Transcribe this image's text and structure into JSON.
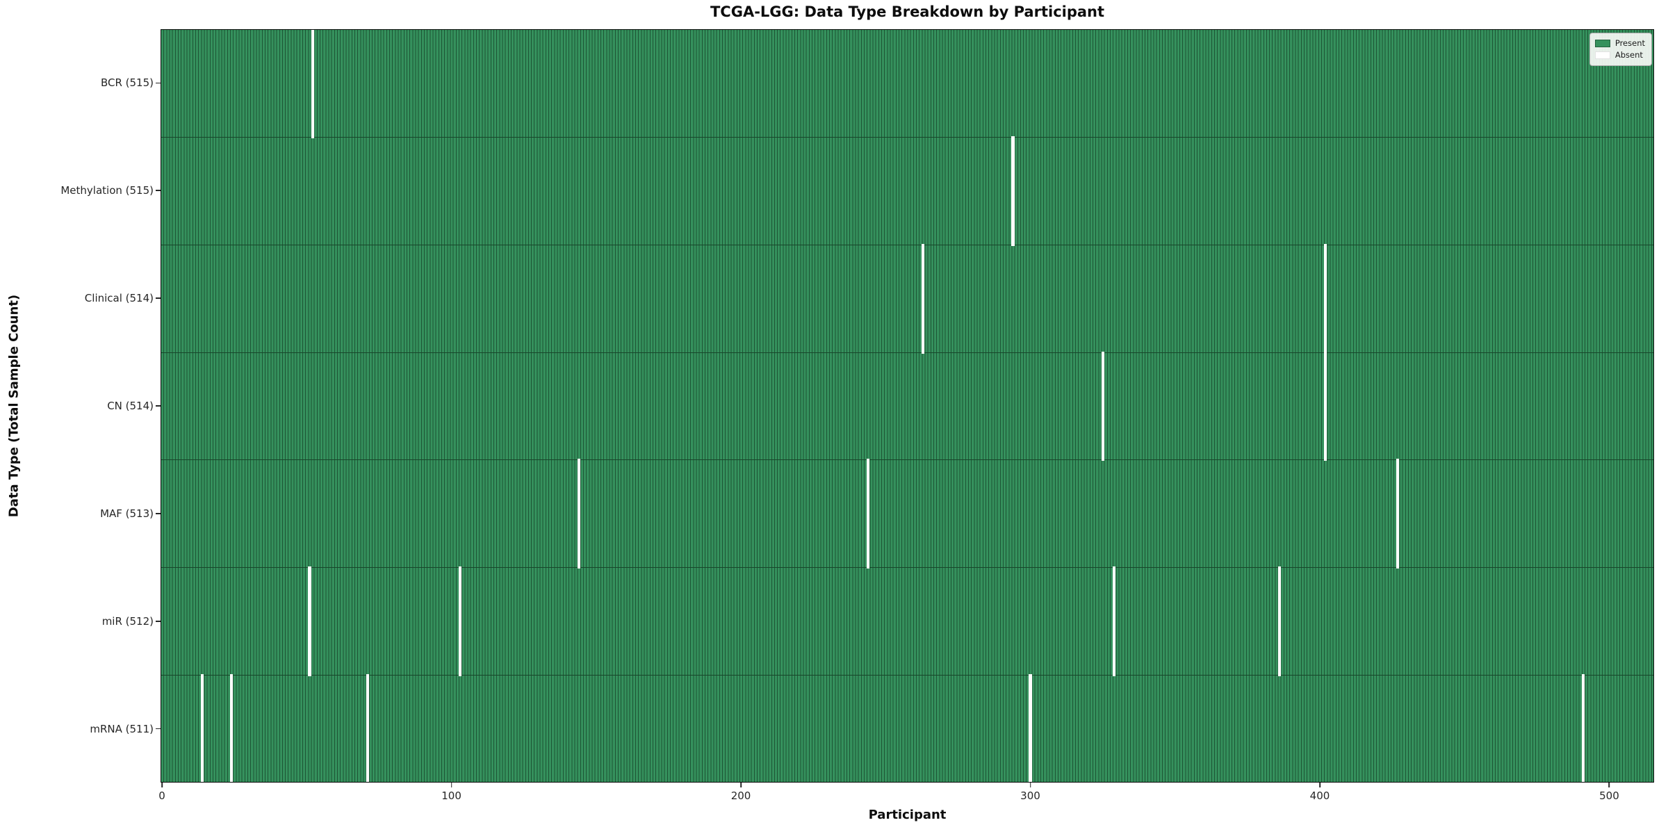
{
  "figure": {
    "title": "TCGA-LGG: Data Type Breakdown by Participant",
    "xlabel": "Participant",
    "ylabel": "Data Type (Total Sample Count)"
  },
  "legend": {
    "position": "upper-right",
    "items": [
      {
        "label": "Present",
        "color": "#35915d"
      },
      {
        "label": "Absent",
        "color": "#ffffff"
      }
    ]
  },
  "colors": {
    "present_fill": "#35915d",
    "bar_edge": "#1d5434",
    "absent_fill": "#ffffff",
    "axis_text": "#262626",
    "frame": "#0a0a0a"
  },
  "chart_data": {
    "type": "heatmap",
    "title": "TCGA-LGG: Data Type Breakdown by Participant",
    "xlabel": "Participant",
    "ylabel": "Data Type (Total Sample Count)",
    "grid": false,
    "legend_position": "upper right",
    "n_participants": 516,
    "xlim": [
      -0.5,
      515.5
    ],
    "x_ticks": [
      0,
      100,
      200,
      300,
      400,
      500
    ],
    "value_encoding": {
      "present": "green cell",
      "absent": "white cell"
    },
    "rows": [
      {
        "label": "BCR (515)",
        "data_type": "BCR",
        "total_samples": 515,
        "absent_participants": [
          52
        ]
      },
      {
        "label": "Methylation (515)",
        "data_type": "Methylation",
        "total_samples": 515,
        "absent_participants": [
          294
        ]
      },
      {
        "label": "Clinical (514)",
        "data_type": "Clinical",
        "total_samples": 514,
        "absent_participants": [
          263,
          402
        ]
      },
      {
        "label": "CN (514)",
        "data_type": "CN",
        "total_samples": 514,
        "absent_participants": [
          325,
          402
        ]
      },
      {
        "label": "MAF (513)",
        "data_type": "MAF",
        "total_samples": 513,
        "absent_participants": [
          144,
          244,
          427
        ]
      },
      {
        "label": "miR (512)",
        "data_type": "miR",
        "total_samples": 512,
        "absent_participants": [
          51,
          103,
          329,
          386
        ]
      },
      {
        "label": "mRNA (511)",
        "data_type": "mRNA",
        "total_samples": 511,
        "absent_participants": [
          14,
          24,
          71,
          300,
          491
        ]
      }
    ]
  }
}
